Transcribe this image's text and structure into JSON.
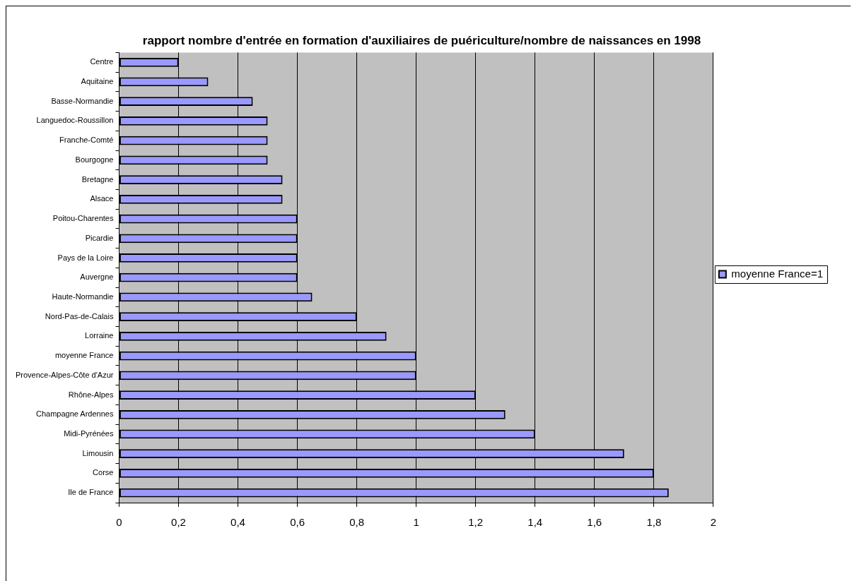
{
  "chart_data": {
    "type": "bar",
    "orientation": "horizontal",
    "title": "rapport nombre d'entrée en formation d'auxiliaires de puériculture/nombre de naissances en 1998",
    "categories": [
      "Centre",
      "Aquitaine",
      "Basse-Normandie",
      "Languedoc-Roussillon",
      "Franche-Comté",
      "Bourgogne",
      "Bretagne",
      "Alsace",
      "Poitou-Charentes",
      "Picardie",
      "Pays de la Loire",
      "Auvergne",
      "Haute-Normandie",
      "Nord-Pas-de-Calais",
      "Lorraine",
      "moyenne France",
      "Provence-Alpes-Côte d'Azur",
      "Rhône-Alpes",
      "Champagne Ardennes",
      "Midi-Pyrénées",
      "Limousin",
      "Corse",
      "Ile de France"
    ],
    "series": [
      {
        "name": "moyenne France=1",
        "color": "#9999ff",
        "values": [
          0.2,
          0.3,
          0.45,
          0.5,
          0.5,
          0.5,
          0.55,
          0.55,
          0.6,
          0.6,
          0.6,
          0.6,
          0.65,
          0.8,
          0.9,
          1,
          1,
          1.2,
          1.3,
          1.4,
          1.7,
          1.8,
          1.85
        ]
      }
    ],
    "xlim": [
      0,
      2
    ],
    "xticks": [
      0,
      {
        "value": 0.2,
        "label": "0,2"
      },
      {
        "value": 0.4,
        "label": "0,4"
      },
      {
        "value": 0.6,
        "label": "0,6"
      },
      {
        "value": 0.8,
        "label": "0,8"
      },
      1,
      {
        "value": 1.2,
        "label": "1,2"
      },
      {
        "value": 1.4,
        "label": "1,4"
      },
      {
        "value": 1.6,
        "label": "1,6"
      },
      {
        "value": 1.8,
        "label": "1,8"
      },
      2
    ],
    "grid": "x",
    "legend": "right"
  }
}
